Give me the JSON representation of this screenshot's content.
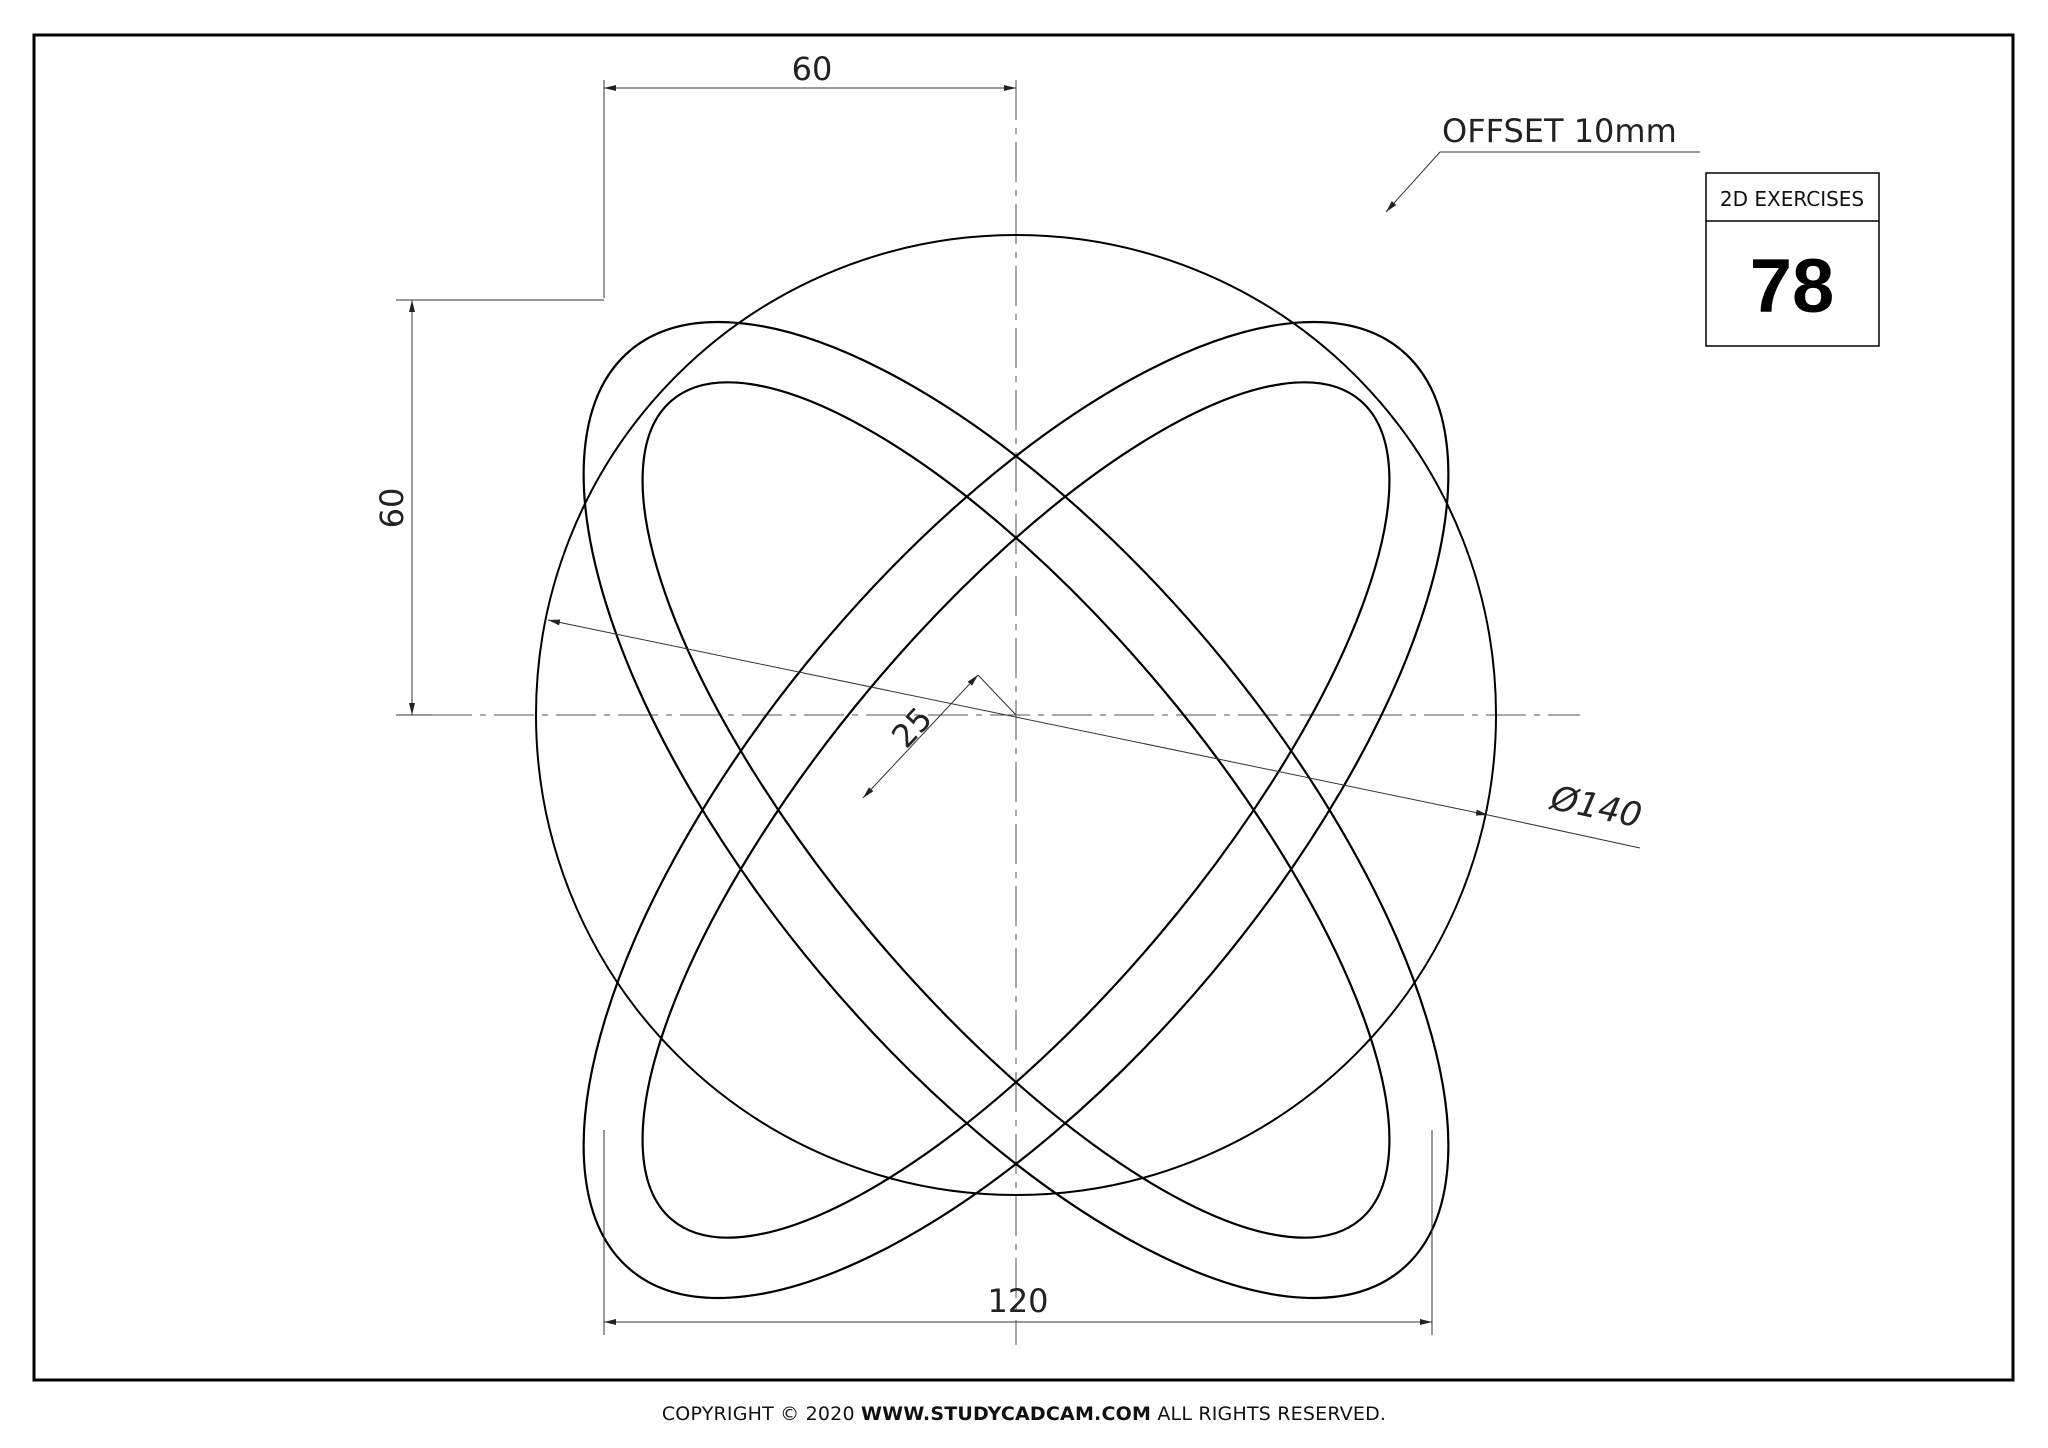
{
  "title_box": {
    "label": "2D EXERCISES",
    "number": "78"
  },
  "dimensions": {
    "top_width": "60",
    "left_height": "60",
    "bottom_width": "120",
    "offset_distance": "25",
    "diameter": "Ø140",
    "offset_note": "OFFSET 10mm"
  },
  "footer": {
    "prefix": "COPYRIGHT © 2020 ",
    "site": "WWW.STUDYCADCAM.COM",
    "suffix": " ALL RIGHTS RESERVED."
  }
}
